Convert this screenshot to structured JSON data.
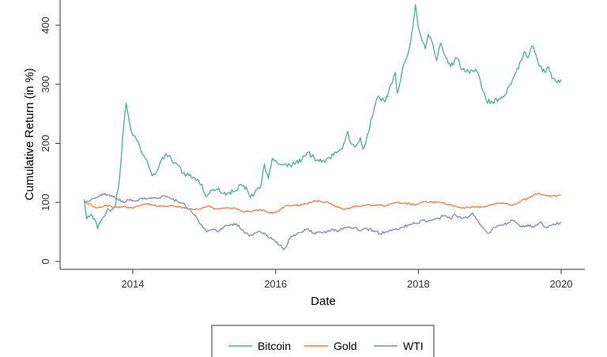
{
  "chart_data": {
    "type": "line",
    "xlabel": "Date",
    "ylabel": "Cumulative Return (in %)",
    "x_ticks": [
      "2014",
      "2016",
      "2018",
      "2020"
    ],
    "y_ticks": [
      "0",
      "100",
      "200",
      "300",
      "400"
    ],
    "x_range": [
      "2013-04-28",
      "2020-01-31"
    ],
    "ylim": [
      -12,
      440
    ],
    "grid": false,
    "legend_position": "bottom",
    "series": [
      {
        "name": "Bitcoin",
        "color": "#4daf8a",
        "points": [
          [
            "2013-04-28",
            105
          ],
          [
            "2013-05-10",
            72
          ],
          [
            "2013-06-01",
            80
          ],
          [
            "2013-06-25",
            68
          ],
          [
            "2013-07-05",
            55
          ],
          [
            "2013-07-25",
            70
          ],
          [
            "2013-08-20",
            85
          ],
          [
            "2013-09-15",
            88
          ],
          [
            "2013-10-05",
            95
          ],
          [
            "2013-10-25",
            140
          ],
          [
            "2013-11-10",
            210
          ],
          [
            "2013-11-28",
            268
          ],
          [
            "2013-12-10",
            245
          ],
          [
            "2013-12-25",
            220
          ],
          [
            "2014-01-15",
            210
          ],
          [
            "2014-02-05",
            195
          ],
          [
            "2014-02-25",
            180
          ],
          [
            "2014-03-20",
            165
          ],
          [
            "2014-04-10",
            145
          ],
          [
            "2014-05-01",
            150
          ],
          [
            "2014-05-25",
            170
          ],
          [
            "2014-06-15",
            180
          ],
          [
            "2014-07-15",
            175
          ],
          [
            "2014-08-15",
            165
          ],
          [
            "2014-09-15",
            150
          ],
          [
            "2014-10-15",
            145
          ],
          [
            "2014-11-15",
            140
          ],
          [
            "2014-12-15",
            130
          ],
          [
            "2015-01-15",
            110
          ],
          [
            "2015-02-10",
            120
          ],
          [
            "2015-03-10",
            122
          ],
          [
            "2015-04-10",
            115
          ],
          [
            "2015-05-10",
            117
          ],
          [
            "2015-06-10",
            120
          ],
          [
            "2015-07-10",
            130
          ],
          [
            "2015-08-10",
            120
          ],
          [
            "2015-08-25",
            108
          ],
          [
            "2015-09-15",
            115
          ],
          [
            "2015-10-15",
            125
          ],
          [
            "2015-11-05",
            165
          ],
          [
            "2015-11-25",
            140
          ],
          [
            "2015-12-15",
            175
          ],
          [
            "2016-01-15",
            165
          ],
          [
            "2016-02-15",
            165
          ],
          [
            "2016-03-15",
            163
          ],
          [
            "2016-04-15",
            168
          ],
          [
            "2016-05-15",
            172
          ],
          [
            "2016-06-15",
            185
          ],
          [
            "2016-07-05",
            178
          ],
          [
            "2016-08-05",
            172
          ],
          [
            "2016-09-05",
            170
          ],
          [
            "2016-10-05",
            175
          ],
          [
            "2016-11-05",
            185
          ],
          [
            "2016-12-05",
            190
          ],
          [
            "2017-01-05",
            220
          ],
          [
            "2017-01-20",
            200
          ],
          [
            "2017-02-15",
            195
          ],
          [
            "2017-03-10",
            210
          ],
          [
            "2017-03-25",
            190
          ],
          [
            "2017-04-15",
            215
          ],
          [
            "2017-05-15",
            250
          ],
          [
            "2017-06-10",
            280
          ],
          [
            "2017-07-15",
            270
          ],
          [
            "2017-08-15",
            300
          ],
          [
            "2017-09-05",
            320
          ],
          [
            "2017-09-15",
            285
          ],
          [
            "2017-10-15",
            330
          ],
          [
            "2017-11-15",
            360
          ],
          [
            "2017-12-05",
            400
          ],
          [
            "2017-12-17",
            435
          ],
          [
            "2017-12-30",
            400
          ],
          [
            "2018-01-15",
            380
          ],
          [
            "2018-02-05",
            360
          ],
          [
            "2018-02-20",
            385
          ],
          [
            "2018-03-15",
            370
          ],
          [
            "2018-04-05",
            340
          ],
          [
            "2018-04-25",
            370
          ],
          [
            "2018-05-15",
            350
          ],
          [
            "2018-06-15",
            330
          ],
          [
            "2018-07-15",
            345
          ],
          [
            "2018-08-15",
            325
          ],
          [
            "2018-09-15",
            322
          ],
          [
            "2018-10-15",
            322
          ],
          [
            "2018-11-01",
            320
          ],
          [
            "2018-11-20",
            295
          ],
          [
            "2018-12-15",
            272
          ],
          [
            "2019-01-15",
            270
          ],
          [
            "2019-02-15",
            275
          ],
          [
            "2019-03-15",
            280
          ],
          [
            "2019-04-15",
            300
          ],
          [
            "2019-05-15",
            320
          ],
          [
            "2019-06-10",
            340
          ],
          [
            "2019-06-26",
            355
          ],
          [
            "2019-07-15",
            345
          ],
          [
            "2019-08-05",
            365
          ],
          [
            "2019-08-25",
            350
          ],
          [
            "2019-09-15",
            330
          ],
          [
            "2019-10-10",
            320
          ],
          [
            "2019-10-28",
            330
          ],
          [
            "2019-11-15",
            310
          ],
          [
            "2019-12-05",
            305
          ],
          [
            "2019-12-31",
            308
          ]
        ]
      },
      {
        "name": "Gold",
        "color": "#f07b44",
        "points": [
          [
            "2013-04-28",
            100
          ],
          [
            "2013-06-01",
            97
          ],
          [
            "2013-06-28",
            90
          ],
          [
            "2013-08-15",
            95
          ],
          [
            "2013-09-15",
            93
          ],
          [
            "2013-10-15",
            92
          ],
          [
            "2013-11-15",
            93
          ],
          [
            "2013-12-15",
            90
          ],
          [
            "2014-01-15",
            92
          ],
          [
            "2014-02-15",
            96
          ],
          [
            "2014-03-15",
            98
          ],
          [
            "2014-04-15",
            95
          ],
          [
            "2014-05-15",
            94
          ],
          [
            "2014-06-15",
            93
          ],
          [
            "2014-07-15",
            95
          ],
          [
            "2014-08-15",
            93
          ],
          [
            "2014-09-15",
            91
          ],
          [
            "2014-10-15",
            89
          ],
          [
            "2014-11-15",
            88
          ],
          [
            "2014-12-15",
            89
          ],
          [
            "2015-01-20",
            94
          ],
          [
            "2015-02-15",
            90
          ],
          [
            "2015-03-15",
            89
          ],
          [
            "2015-04-15",
            90
          ],
          [
            "2015-05-15",
            90
          ],
          [
            "2015-06-15",
            89
          ],
          [
            "2015-07-20",
            84
          ],
          [
            "2015-08-15",
            85
          ],
          [
            "2015-09-15",
            86
          ],
          [
            "2015-10-15",
            88
          ],
          [
            "2015-11-15",
            84
          ],
          [
            "2015-12-15",
            82
          ],
          [
            "2016-01-15",
            85
          ],
          [
            "2016-02-15",
            93
          ],
          [
            "2016-03-15",
            94
          ],
          [
            "2016-04-15",
            95
          ],
          [
            "2016-05-15",
            96
          ],
          [
            "2016-06-15",
            98
          ],
          [
            "2016-07-15",
            103
          ],
          [
            "2016-08-15",
            102
          ],
          [
            "2016-09-15",
            101
          ],
          [
            "2016-10-15",
            97
          ],
          [
            "2016-11-15",
            92
          ],
          [
            "2016-12-15",
            88
          ],
          [
            "2017-01-15",
            91
          ],
          [
            "2017-02-15",
            94
          ],
          [
            "2017-03-15",
            93
          ],
          [
            "2017-04-15",
            96
          ],
          [
            "2017-05-15",
            95
          ],
          [
            "2017-06-15",
            96
          ],
          [
            "2017-07-15",
            94
          ],
          [
            "2017-08-15",
            98
          ],
          [
            "2017-09-08",
            100
          ],
          [
            "2017-10-15",
            98
          ],
          [
            "2017-11-15",
            98
          ],
          [
            "2017-12-15",
            96
          ],
          [
            "2018-01-25",
            101
          ],
          [
            "2018-02-15",
            100
          ],
          [
            "2018-03-15",
            100
          ],
          [
            "2018-04-15",
            101
          ],
          [
            "2018-05-15",
            98
          ],
          [
            "2018-06-15",
            96
          ],
          [
            "2018-07-15",
            93
          ],
          [
            "2018-08-15",
            91
          ],
          [
            "2018-09-15",
            91
          ],
          [
            "2018-10-15",
            92
          ],
          [
            "2018-11-15",
            92
          ],
          [
            "2018-12-15",
            94
          ],
          [
            "2019-01-15",
            97
          ],
          [
            "2019-02-15",
            99
          ],
          [
            "2019-03-15",
            98
          ],
          [
            "2019-04-15",
            96
          ],
          [
            "2019-05-15",
            97
          ],
          [
            "2019-06-15",
            104
          ],
          [
            "2019-07-15",
            107
          ],
          [
            "2019-08-15",
            113
          ],
          [
            "2019-09-05",
            115
          ],
          [
            "2019-10-15",
            112
          ],
          [
            "2019-11-15",
            111
          ],
          [
            "2019-12-31",
            112
          ]
        ]
      },
      {
        "name": "WTI",
        "color": "#7b8ab8",
        "points": [
          [
            "2013-04-28",
            100
          ],
          [
            "2013-06-01",
            104
          ],
          [
            "2013-07-01",
            108
          ],
          [
            "2013-08-01",
            115
          ],
          [
            "2013-08-25",
            113
          ],
          [
            "2013-09-15",
            112
          ],
          [
            "2013-10-15",
            106
          ],
          [
            "2013-11-15",
            100
          ],
          [
            "2013-12-15",
            104
          ],
          [
            "2014-01-15",
            102
          ],
          [
            "2014-02-15",
            107
          ],
          [
            "2014-03-15",
            106
          ],
          [
            "2014-04-15",
            107
          ],
          [
            "2014-05-15",
            108
          ],
          [
            "2014-06-15",
            111
          ],
          [
            "2014-07-15",
            106
          ],
          [
            "2014-08-15",
            103
          ],
          [
            "2014-09-15",
            99
          ],
          [
            "2014-10-15",
            89
          ],
          [
            "2014-11-15",
            79
          ],
          [
            "2014-12-15",
            62
          ],
          [
            "2015-01-15",
            50
          ],
          [
            "2015-02-15",
            55
          ],
          [
            "2015-03-15",
            50
          ],
          [
            "2015-04-15",
            60
          ],
          [
            "2015-05-15",
            62
          ],
          [
            "2015-06-15",
            64
          ],
          [
            "2015-07-15",
            54
          ],
          [
            "2015-08-20",
            43
          ],
          [
            "2015-09-15",
            48
          ],
          [
            "2015-10-15",
            50
          ],
          [
            "2015-11-15",
            45
          ],
          [
            "2015-12-15",
            37
          ],
          [
            "2016-01-20",
            28
          ],
          [
            "2016-02-11",
            20
          ],
          [
            "2016-02-25",
            25
          ],
          [
            "2016-03-15",
            40
          ],
          [
            "2016-04-15",
            45
          ],
          [
            "2016-05-15",
            50
          ],
          [
            "2016-06-10",
            55
          ],
          [
            "2016-07-15",
            48
          ],
          [
            "2016-08-15",
            50
          ],
          [
            "2016-09-15",
            48
          ],
          [
            "2016-10-15",
            55
          ],
          [
            "2016-11-15",
            50
          ],
          [
            "2016-12-15",
            57
          ],
          [
            "2017-01-15",
            58
          ],
          [
            "2017-02-15",
            58
          ],
          [
            "2017-03-15",
            52
          ],
          [
            "2017-04-15",
            55
          ],
          [
            "2017-05-15",
            52
          ],
          [
            "2017-06-20",
            47
          ],
          [
            "2017-07-15",
            50
          ],
          [
            "2017-08-15",
            52
          ],
          [
            "2017-09-15",
            54
          ],
          [
            "2017-10-15",
            58
          ],
          [
            "2017-11-15",
            62
          ],
          [
            "2017-12-15",
            64
          ],
          [
            "2018-01-25",
            70
          ],
          [
            "2018-02-15",
            67
          ],
          [
            "2018-03-15",
            70
          ],
          [
            "2018-04-15",
            73
          ],
          [
            "2018-05-20",
            78
          ],
          [
            "2018-06-15",
            72
          ],
          [
            "2018-07-05",
            80
          ],
          [
            "2018-07-25",
            75
          ],
          [
            "2018-08-15",
            73
          ],
          [
            "2018-09-15",
            76
          ],
          [
            "2018-10-05",
            82
          ],
          [
            "2018-10-25",
            72
          ],
          [
            "2018-11-15",
            62
          ],
          [
            "2018-12-24",
            47
          ],
          [
            "2019-01-15",
            56
          ],
          [
            "2019-02-15",
            60
          ],
          [
            "2019-03-15",
            62
          ],
          [
            "2019-04-20",
            70
          ],
          [
            "2019-05-15",
            66
          ],
          [
            "2019-06-15",
            58
          ],
          [
            "2019-07-15",
            62
          ],
          [
            "2019-08-15",
            58
          ],
          [
            "2019-09-16",
            67
          ],
          [
            "2019-10-15",
            58
          ],
          [
            "2019-11-15",
            62
          ],
          [
            "2019-12-31",
            66
          ]
        ]
      }
    ]
  }
}
